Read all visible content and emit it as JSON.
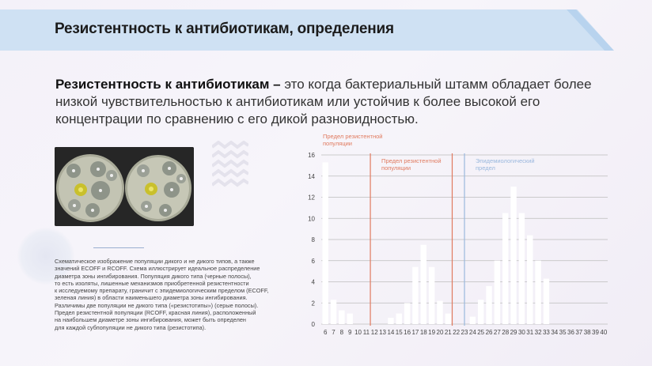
{
  "header": {
    "title": "Резистентность к антибиотикам, определения"
  },
  "definition": {
    "term": "Резистентность к антибиотикам –",
    "text": " это когда бактериальный штамм обладает более низкой чувствительностью к антибиотикам или устойчив к более высокой его концентрации по сравнению с его дикой разновидностью."
  },
  "caption": {
    "lines": [
      "Схематическое изображение популяции дикого и не дикого типов, а также",
      "значений ECOFF и RCOFF. Схема иллюстрирует идеальное распределение",
      "диаметра зоны ингибирования. Популяция дикого типа (черные полосы),",
      "то есть изоляты, лишенные механизмов приобретенной резистентности",
      "к исследуемому препарату, граничит с эпидемиологическим пределом (ECOFF,",
      "зеленая линия) в области наименьшего диаметра зоны ингибирования.",
      "Различимы две популяции не дикого типа («резистотипы») (серые полосы).",
      "Предел резистентной популяции (RCOFF, красная линия), расположенный",
      "на наибольшем диаметре зоны ингибирования, может быть определен",
      "для каждой субпопуляции не дикого типа (резистотипа)."
    ]
  },
  "colors": {
    "red_line": "#e07a5f",
    "blue_line": "#9ab8dd",
    "bars": "#ffffff"
  },
  "icons": {
    "decor_zigzag": "zigzag-decor-icon",
    "decor_dots": "dots-circle-decor-icon"
  },
  "chart_data": {
    "type": "bar",
    "x": [
      6,
      7,
      8,
      9,
      10,
      11,
      12,
      13,
      14,
      15,
      16,
      17,
      18,
      19,
      20,
      21,
      22,
      23,
      24,
      25,
      26,
      27,
      28,
      29,
      30,
      31,
      32,
      33,
      34,
      35,
      36,
      37,
      38,
      39,
      40
    ],
    "values": [
      15.3,
      2.3,
      1.3,
      1.0,
      0,
      0,
      0,
      0,
      0.6,
      1.0,
      2.0,
      5.4,
      7.5,
      5.4,
      2.2,
      1.0,
      0,
      0,
      0.7,
      2.3,
      3.6,
      6.0,
      10.5,
      13.0,
      10.5,
      8.4,
      6.0,
      4.3,
      0,
      0,
      0,
      0,
      0,
      0,
      0
    ],
    "ylim": [
      0,
      16
    ],
    "yticks": [
      0,
      2,
      4,
      6,
      8,
      10,
      12,
      14,
      16
    ],
    "grid": true,
    "annotations": [
      {
        "label": [
          "Предел резистентной",
          "популяции"
        ],
        "x": 10.5,
        "color": "#e07a5f",
        "line": false
      },
      {
        "label": [
          "Предел резистентной",
          "популяции"
        ],
        "x": 11,
        "color": "#e07a5f",
        "line": true
      },
      {
        "label": [],
        "x": 21,
        "color": "#e07a5f",
        "line": true
      },
      {
        "label": [
          "Эпидемиологический",
          "предел"
        ],
        "x": 22.5,
        "color": "#9ab8dd",
        "line": true
      }
    ]
  }
}
